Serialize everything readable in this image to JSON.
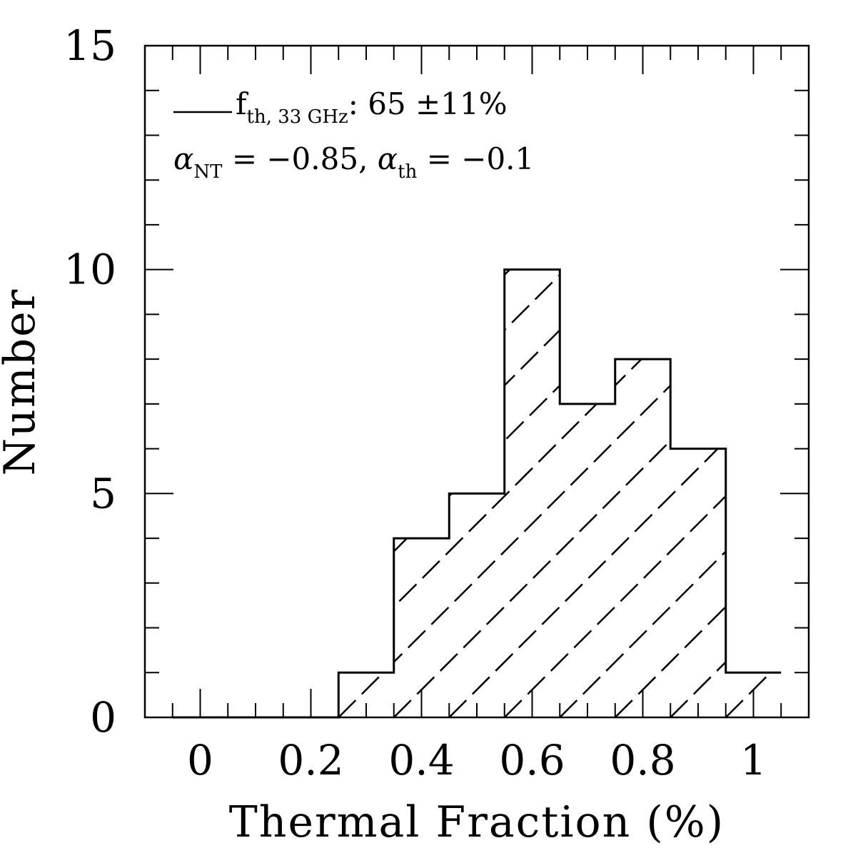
{
  "chart_data": {
    "type": "bar",
    "histogram": true,
    "bins": [
      {
        "x0": -0.05,
        "x1": 0.05,
        "count": 0
      },
      {
        "x0": 0.05,
        "x1": 0.15,
        "count": 0
      },
      {
        "x0": 0.15,
        "x1": 0.25,
        "count": 0
      },
      {
        "x0": 0.25,
        "x1": 0.35,
        "count": 1
      },
      {
        "x0": 0.35,
        "x1": 0.45,
        "count": 4
      },
      {
        "x0": 0.45,
        "x1": 0.55,
        "count": 5
      },
      {
        "x0": 0.55,
        "x1": 0.65,
        "count": 10
      },
      {
        "x0": 0.65,
        "x1": 0.75,
        "count": 7
      },
      {
        "x0": 0.75,
        "x1": 0.85,
        "count": 8
      },
      {
        "x0": 0.85,
        "x1": 0.95,
        "count": 6
      },
      {
        "x0": 0.95,
        "x1": 1.05,
        "count": 1
      }
    ],
    "xlabel": "Thermal Fraction (%)",
    "ylabel": "Number",
    "xlim": [
      -0.1,
      1.1
    ],
    "ylim": [
      0,
      15
    ],
    "x_major_ticks": [
      0,
      0.2,
      0.4,
      0.6,
      0.8,
      1
    ],
    "x_tick_labels": [
      "0",
      "0.2",
      "0.4",
      "0.6",
      "0.8",
      "1"
    ],
    "x_minor_step": 0.05,
    "y_major_ticks": [
      0,
      5,
      10,
      15
    ],
    "y_tick_labels": [
      "0",
      "5",
      "10",
      "15"
    ],
    "y_minor_step": 1,
    "grid": false,
    "fill": "diagonal dashed hatching",
    "annotation": {
      "line1_f": "f",
      "line1_sub": "th, 33 GHz",
      "line1_rest": ": 65 ±11%",
      "line2_alpha1": "α",
      "line2_sub1": "NT",
      "line2_mid": " = −0.85, ",
      "line2_alpha2": "α",
      "line2_sub2": "th",
      "line2_end": " = −0.1"
    },
    "colors": {
      "line": "#000000",
      "background": "#ffffff"
    }
  }
}
